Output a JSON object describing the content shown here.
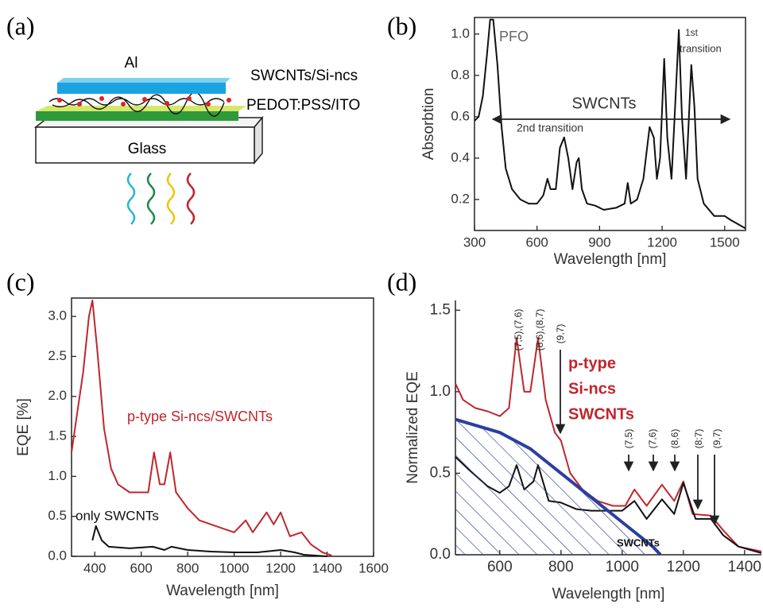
{
  "panel_labels": [
    "(a)",
    "(b)",
    "(c)",
    "(d)"
  ],
  "diagram": {
    "layers": [
      "Al",
      "SWCNTs/Si-ncs",
      "PEDOT:PSS/ITO",
      "Glass"
    ]
  },
  "chart_data": [
    {
      "type": "line",
      "xlabel": "Wavelength [nm]",
      "ylabel": "Absorbtion",
      "xlim": [
        300,
        1600
      ],
      "ylim": [
        0.05,
        1.08
      ],
      "xticks": [
        300,
        600,
        900,
        1200,
        1500
      ],
      "yticks": [
        0.2,
        0.4,
        0.6,
        0.8,
        {
          "value": 1,
          "label": "1.0"
        }
      ],
      "frame": true,
      "annotations": [
        {
          "text": "PFO",
          "color": "#666666"
        },
        {
          "text": "SWCNTs",
          "color": "#333333"
        },
        {
          "text": "2nd transition",
          "color": "#333333"
        },
        {
          "text": "1st",
          "color": "#333333"
        },
        {
          "text": "transition",
          "color": "#333333"
        }
      ],
      "series": [
        {
          "color": "#111111",
          "x": [
            300,
            320,
            340,
            360,
            375,
            390,
            410,
            430,
            450,
            480,
            520,
            560,
            600,
            630,
            650,
            665,
            690,
            710,
            730,
            750,
            770,
            790,
            800,
            815,
            840,
            880,
            920,
            980,
            1020,
            1035,
            1050,
            1080,
            1110,
            1140,
            1160,
            1175,
            1190,
            1210,
            1225,
            1245,
            1260,
            1280,
            1295,
            1315,
            1340,
            1355,
            1370,
            1400,
            1450,
            1500,
            1530,
            1600
          ],
          "values": [
            0.58,
            0.6,
            0.7,
            0.9,
            1.07,
            1.07,
            0.85,
            0.55,
            0.35,
            0.25,
            0.2,
            0.18,
            0.18,
            0.22,
            0.3,
            0.25,
            0.25,
            0.45,
            0.5,
            0.4,
            0.25,
            0.38,
            0.4,
            0.25,
            0.18,
            0.17,
            0.15,
            0.16,
            0.18,
            0.28,
            0.18,
            0.2,
            0.3,
            0.55,
            0.5,
            0.3,
            0.4,
            0.88,
            0.5,
            0.3,
            0.6,
            1.02,
            0.6,
            0.3,
            0.85,
            0.65,
            0.3,
            0.18,
            0.12,
            0.12,
            0.1,
            0.06
          ]
        }
      ]
    },
    {
      "type": "line",
      "xlabel": "Wavelength [nm]",
      "ylabel": "EQE [%]",
      "xlim": [
        300,
        1600
      ],
      "ylim": [
        0,
        3.23
      ],
      "xticks": [
        400,
        600,
        800,
        1000,
        1200,
        1400,
        1600
      ],
      "yticks": [
        {
          "value": 0,
          "label": "0.0"
        },
        0.5,
        {
          "value": 1,
          "label": "1.0"
        },
        1.5,
        {
          "value": 2,
          "label": "2.0"
        },
        2.5,
        {
          "value": 3,
          "label": "3.0"
        }
      ],
      "frame": true,
      "annotations": [
        {
          "text": "p-type Si-ncs/SWCNTs",
          "color": "#c0262d"
        },
        {
          "text": "only SWCNTs",
          "color": "#111111"
        }
      ],
      "series": [
        {
          "color": "#c0262d",
          "x": [
            300,
            320,
            350,
            375,
            390,
            410,
            440,
            470,
            500,
            550,
            600,
            630,
            655,
            680,
            700,
            725,
            750,
            800,
            850,
            900,
            950,
            1000,
            1050,
            1080,
            1140,
            1170,
            1200,
            1240,
            1290,
            1330,
            1380,
            1420
          ],
          "values": [
            1.3,
            1.7,
            2.3,
            3.0,
            3.2,
            2.6,
            1.6,
            1.1,
            0.9,
            0.8,
            0.8,
            0.8,
            1.3,
            0.9,
            0.9,
            1.3,
            0.8,
            0.6,
            0.45,
            0.4,
            0.35,
            0.3,
            0.45,
            0.3,
            0.55,
            0.4,
            0.55,
            0.25,
            0.3,
            0.15,
            0.05,
            0.01
          ]
        },
        {
          "color": "#111111",
          "x": [
            390,
            405,
            430,
            460,
            550,
            650,
            700,
            730,
            800,
            900,
            1000,
            1100,
            1200,
            1260,
            1300,
            1400
          ],
          "values": [
            0.2,
            0.38,
            0.2,
            0.12,
            0.1,
            0.12,
            0.08,
            0.12,
            0.08,
            0.06,
            0.05,
            0.05,
            0.08,
            0.05,
            0.02,
            0
          ]
        }
      ]
    },
    {
      "type": "line",
      "xlabel": "Wavelength [nm]",
      "ylabel": "Normalized EQE",
      "xlim": [
        455,
        1455
      ],
      "ylim": [
        0,
        1.56
      ],
      "xticks": [
        600,
        800,
        1000,
        1200,
        1400
      ],
      "yticks": [
        {
          "value": 0,
          "label": "0.0"
        },
        0.5,
        {
          "value": 1,
          "label": "1.0"
        },
        1.5
      ],
      "frame": false,
      "annotations": [
        {
          "text": "(7,5),(7,6)",
          "color": "#222222"
        },
        {
          "text": "(8,6),(8,7)",
          "color": "#222222"
        },
        {
          "text": "(9,7)",
          "color": "#222222"
        },
        {
          "text": "p-type",
          "color": "#c0262d"
        },
        {
          "text": "Si-ncs",
          "color": "#c0262d"
        },
        {
          "text": "SWCNTs",
          "color": "#c0262d"
        },
        {
          "text": "(7,5)",
          "color": "#222222"
        },
        {
          "text": "(7,6)",
          "color": "#222222"
        },
        {
          "text": "(8,6)",
          "color": "#222222"
        },
        {
          "text": "(8;7)",
          "color": "#222222"
        },
        {
          "text": "(9,7)",
          "color": "#222222"
        },
        {
          "text": "SWCNTs",
          "color": "#111111"
        }
      ],
      "series": [
        {
          "color": "#c0262d",
          "x": [
            455,
            480,
            520,
            560,
            600,
            630,
            655,
            680,
            700,
            725,
            750,
            780,
            800,
            830,
            870,
            920,
            970,
            1010,
            1040,
            1080,
            1130,
            1170,
            1200,
            1230,
            1290,
            1330,
            1380,
            1455
          ],
          "values": [
            1.05,
            0.95,
            0.9,
            0.88,
            0.85,
            0.9,
            1.33,
            1.0,
            1.0,
            1.33,
            0.95,
            0.75,
            0.7,
            0.5,
            0.4,
            0.33,
            0.3,
            0.3,
            0.4,
            0.3,
            0.43,
            0.33,
            0.45,
            0.25,
            0.24,
            0.15,
            0.05,
            0.02
          ]
        },
        {
          "color": "#111111",
          "x": [
            455,
            500,
            560,
            600,
            630,
            655,
            680,
            710,
            725,
            760,
            800,
            850,
            900,
            950,
            1000,
            1040,
            1080,
            1130,
            1170,
            1200,
            1240,
            1290,
            1330,
            1380,
            1455
          ],
          "values": [
            0.6,
            0.52,
            0.42,
            0.38,
            0.42,
            0.55,
            0.4,
            0.45,
            0.55,
            0.33,
            0.32,
            0.28,
            0.27,
            0.27,
            0.27,
            0.33,
            0.22,
            0.34,
            0.25,
            0.44,
            0.22,
            0.22,
            0.12,
            0.05,
            0.01
          ]
        },
        {
          "color": "#2b3f9e",
          "hatched": true,
          "x": [
            455,
            600,
            700,
            800,
            900,
            1000,
            1100,
            1125
          ],
          "values": [
            0.83,
            0.75,
            0.65,
            0.5,
            0.35,
            0.2,
            0.05,
            0
          ]
        }
      ]
    }
  ]
}
